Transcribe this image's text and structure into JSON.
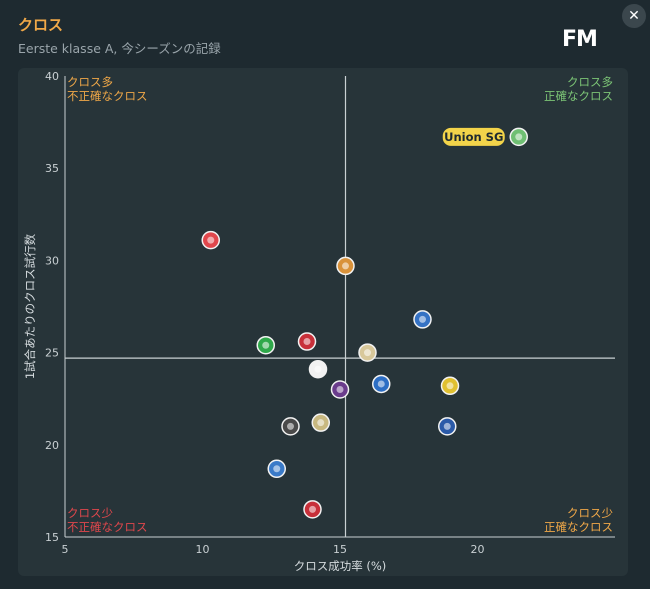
{
  "header": {
    "title": "クロス",
    "subtitle": "Eerste klasse A, 今シーズンの記録",
    "logo": "FM"
  },
  "close_icon": "close-icon",
  "colors": {
    "background": "#1e2a30",
    "panel": "#273439",
    "title": "#f0a848",
    "q_topleft": "#f0a848",
    "q_topright": "#7cc576",
    "q_bottomleft": "#e0474c",
    "q_bottomright": "#f0a848",
    "highlight": "#f3d44a"
  },
  "quadrants": {
    "top_left": [
      "クロス多",
      "不正確なクロス"
    ],
    "top_right": [
      "クロス多",
      "正確なクロス"
    ],
    "bottom_left": [
      "クロス少",
      "不正確なクロス"
    ],
    "bottom_right": [
      "クロス少",
      "正確なクロス"
    ]
  },
  "chart_data": {
    "type": "scatter",
    "xlabel": "クロス成功率 (%)",
    "ylabel": "1試合あたりのクロス試行数",
    "xlim": [
      5,
      25
    ],
    "ylim": [
      15,
      40
    ],
    "xticks": [
      5,
      10,
      15,
      20
    ],
    "yticks": [
      15,
      20,
      25,
      30,
      35,
      40
    ],
    "x_reference": 15.2,
    "y_reference": 24.7,
    "grid": false,
    "highlighted_label": "Union SG",
    "points": [
      {
        "x": 21.5,
        "y": 36.7,
        "color": "#6fbf73",
        "highlight": true
      },
      {
        "x": 10.3,
        "y": 31.1,
        "color": "#e0474c"
      },
      {
        "x": 15.2,
        "y": 29.7,
        "color": "#d9923a"
      },
      {
        "x": 18.0,
        "y": 26.8,
        "color": "#3572c4"
      },
      {
        "x": 12.3,
        "y": 25.4,
        "color": "#2fa84a"
      },
      {
        "x": 13.8,
        "y": 25.6,
        "color": "#c8303a"
      },
      {
        "x": 16.0,
        "y": 25.0,
        "color": "#d8c89a"
      },
      {
        "x": 14.2,
        "y": 24.1,
        "color": "#f2f2f2"
      },
      {
        "x": 16.5,
        "y": 23.3,
        "color": "#2d6ec4"
      },
      {
        "x": 15.0,
        "y": 23.0,
        "color": "#6a3c8c"
      },
      {
        "x": 19.0,
        "y": 23.2,
        "color": "#e0c030"
      },
      {
        "x": 13.2,
        "y": 21.0,
        "color": "#4a4a4a"
      },
      {
        "x": 14.3,
        "y": 21.2,
        "color": "#c8b880"
      },
      {
        "x": 18.9,
        "y": 21.0,
        "color": "#2b5aa8"
      },
      {
        "x": 12.7,
        "y": 18.7,
        "color": "#3a7ac8"
      },
      {
        "x": 14.0,
        "y": 16.5,
        "color": "#c8303a"
      }
    ]
  }
}
